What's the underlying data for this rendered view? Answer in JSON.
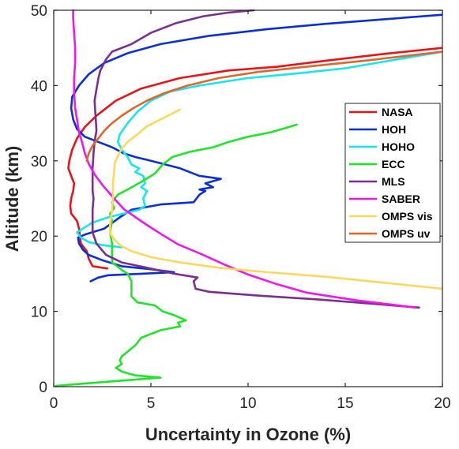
{
  "chart_data": {
    "type": "line",
    "title": "",
    "xlabel": "Uncertainty in Ozone (%)",
    "ylabel": "Altitude (km)",
    "xlim": [
      0,
      20
    ],
    "ylim": [
      0,
      50
    ],
    "xticks": [
      0,
      5,
      10,
      15,
      20
    ],
    "yticks": [
      0,
      10,
      20,
      30,
      40,
      50
    ],
    "grid": false,
    "legend_position": "right",
    "series": [
      {
        "name": "NASA",
        "color": "#e8141a",
        "points": [
          [
            2.75,
            15.7
          ],
          [
            2.0,
            16.0
          ],
          [
            1.8,
            17.0
          ],
          [
            1.7,
            18.0
          ],
          [
            1.4,
            19.0
          ],
          [
            1.35,
            20.0
          ],
          [
            1.3,
            21.0
          ],
          [
            1.2,
            22.0
          ],
          [
            0.9,
            23.0
          ],
          [
            0.85,
            24.0
          ],
          [
            0.9,
            25.0
          ],
          [
            1.0,
            26.0
          ],
          [
            1.05,
            27.0
          ],
          [
            0.9,
            28.0
          ],
          [
            0.75,
            29.0
          ],
          [
            0.8,
            30.0
          ],
          [
            0.95,
            31.5
          ],
          [
            1.2,
            33.0
          ],
          [
            1.6,
            34.5
          ],
          [
            2.2,
            36.0
          ],
          [
            3.2,
            38.0
          ],
          [
            4.5,
            39.6
          ],
          [
            6.5,
            41.0
          ],
          [
            9.0,
            42.0
          ],
          [
            11.5,
            42.5
          ],
          [
            14.0,
            43.3
          ],
          [
            17.0,
            44.2
          ],
          [
            20.0,
            45.0
          ]
        ]
      },
      {
        "name": "HOH",
        "color": "#0a2fd6",
        "points": [
          [
            1.9,
            14.0
          ],
          [
            2.3,
            14.5
          ],
          [
            2.8,
            14.8
          ],
          [
            4.5,
            15.0
          ],
          [
            6.2,
            15.2
          ],
          [
            5.0,
            15.6
          ],
          [
            3.5,
            16.0
          ],
          [
            2.5,
            16.8
          ],
          [
            1.8,
            17.5
          ],
          [
            1.5,
            18.2
          ],
          [
            1.3,
            19.0
          ],
          [
            1.25,
            19.8
          ],
          [
            1.6,
            20.2
          ],
          [
            2.6,
            21.0
          ],
          [
            3.4,
            22.5
          ],
          [
            4.0,
            23.5
          ],
          [
            5.5,
            24.2
          ],
          [
            7.2,
            24.5
          ],
          [
            7.5,
            25.5
          ],
          [
            7.8,
            26.0
          ],
          [
            7.5,
            26.2
          ],
          [
            8.2,
            26.5
          ],
          [
            7.8,
            27.0
          ],
          [
            8.6,
            27.6
          ],
          [
            7.5,
            28.0
          ],
          [
            6.5,
            29.0
          ],
          [
            5.0,
            30.0
          ],
          [
            4.2,
            30.5
          ],
          [
            3.6,
            31.0
          ],
          [
            3.0,
            31.8
          ],
          [
            2.3,
            32.5
          ],
          [
            1.6,
            33.2
          ],
          [
            1.2,
            34.2
          ],
          [
            1.0,
            35.5
          ],
          [
            0.9,
            37.0
          ],
          [
            0.95,
            38.5
          ],
          [
            1.3,
            40.0
          ],
          [
            1.8,
            41.5
          ],
          [
            2.6,
            43.0
          ],
          [
            3.8,
            44.3
          ],
          [
            5.5,
            45.5
          ],
          [
            8.0,
            46.6
          ],
          [
            11.0,
            47.5
          ],
          [
            14.0,
            48.2
          ],
          [
            17.0,
            48.8
          ],
          [
            20.0,
            49.4
          ]
        ]
      },
      {
        "name": "HOHO",
        "color": "#17e5f0",
        "points": [
          [
            3.5,
            18.5
          ],
          [
            2.5,
            18.8
          ],
          [
            1.8,
            19.2
          ],
          [
            1.4,
            19.8
          ],
          [
            1.2,
            20.5
          ],
          [
            1.5,
            21.0
          ],
          [
            2.0,
            21.8
          ],
          [
            2.8,
            22.5
          ],
          [
            3.6,
            23.0
          ],
          [
            4.4,
            23.5
          ],
          [
            4.7,
            24.0
          ],
          [
            4.6,
            25.0
          ],
          [
            4.8,
            26.0
          ],
          [
            4.5,
            26.5
          ],
          [
            4.7,
            27.0
          ],
          [
            4.6,
            28.0
          ],
          [
            4.2,
            28.5
          ],
          [
            4.4,
            29.0
          ],
          [
            4.0,
            29.5
          ],
          [
            3.8,
            30.5
          ],
          [
            3.5,
            31.5
          ],
          [
            3.3,
            32.5
          ],
          [
            3.4,
            33.5
          ],
          [
            3.8,
            35.0
          ],
          [
            4.3,
            36.5
          ],
          [
            5.0,
            38.0
          ],
          [
            6.0,
            39.2
          ],
          [
            7.5,
            40.0
          ],
          [
            10.0,
            41.0
          ],
          [
            12.5,
            41.6
          ],
          [
            15.0,
            42.3
          ],
          [
            20.0,
            44.5
          ]
        ]
      },
      {
        "name": "ECC",
        "color": "#20e52a",
        "points": [
          [
            0.1,
            0.1
          ],
          [
            1.5,
            0.4
          ],
          [
            3.0,
            0.7
          ],
          [
            5.5,
            1.2
          ],
          [
            4.2,
            1.5
          ],
          [
            3.5,
            2.0
          ],
          [
            3.2,
            2.5
          ],
          [
            3.5,
            3.0
          ],
          [
            3.4,
            3.5
          ],
          [
            3.5,
            4.0
          ],
          [
            4.2,
            5.5
          ],
          [
            4.5,
            6.5
          ],
          [
            5.5,
            7.5
          ],
          [
            6.5,
            8.0
          ],
          [
            6.4,
            8.5
          ],
          [
            6.8,
            8.8
          ],
          [
            6.2,
            9.5
          ],
          [
            5.6,
            10.0
          ],
          [
            5.2,
            10.8
          ],
          [
            4.3,
            11.2
          ],
          [
            4.0,
            12.0
          ],
          [
            4.0,
            13.0
          ],
          [
            4.0,
            14.0
          ],
          [
            3.8,
            15.0
          ],
          [
            3.5,
            15.5
          ],
          [
            3.0,
            16.5
          ],
          [
            3.0,
            17.5
          ],
          [
            3.0,
            19.0
          ],
          [
            2.9,
            20.5
          ],
          [
            3.0,
            22.0
          ],
          [
            2.9,
            23.0
          ],
          [
            3.1,
            23.7
          ],
          [
            3.0,
            24.5
          ],
          [
            3.3,
            25.5
          ],
          [
            3.8,
            26.2
          ],
          [
            4.5,
            27.2
          ],
          [
            5.2,
            28.3
          ],
          [
            5.6,
            29.5
          ],
          [
            6.1,
            30.5
          ],
          [
            7.0,
            31.2
          ],
          [
            8.2,
            31.8
          ],
          [
            9.0,
            32.5
          ],
          [
            10.0,
            33.2
          ],
          [
            11.2,
            33.8
          ],
          [
            12.5,
            34.8
          ]
        ]
      },
      {
        "name": "MLS",
        "color": "#7a2f90",
        "points": [
          [
            18.8,
            10.5
          ],
          [
            16.5,
            11.0
          ],
          [
            13.5,
            11.6
          ],
          [
            10.5,
            12.1
          ],
          [
            8.0,
            12.6
          ],
          [
            7.3,
            13.0
          ],
          [
            7.2,
            14.0
          ],
          [
            7.4,
            14.5
          ],
          [
            6.2,
            15.0
          ],
          [
            4.8,
            15.8
          ],
          [
            3.5,
            16.5
          ],
          [
            2.7,
            17.5
          ],
          [
            2.2,
            19.0
          ],
          [
            2.0,
            20.5
          ],
          [
            2.0,
            22.0
          ],
          [
            2.0,
            23.5
          ],
          [
            2.05,
            25.0
          ],
          [
            2.0,
            26.0
          ],
          [
            2.0,
            27.5
          ],
          [
            2.0,
            29.0
          ],
          [
            2.05,
            31.0
          ],
          [
            2.1,
            32.5
          ],
          [
            2.2,
            34.0
          ],
          [
            2.15,
            36.0
          ],
          [
            2.1,
            38.0
          ],
          [
            2.2,
            39.5
          ],
          [
            2.3,
            41.0
          ],
          [
            2.4,
            42.0
          ],
          [
            2.7,
            43.5
          ],
          [
            3.0,
            44.5
          ],
          [
            4.0,
            45.5
          ],
          [
            5.0,
            47.0
          ],
          [
            6.3,
            48.3
          ],
          [
            7.7,
            49.2
          ],
          [
            9.0,
            49.7
          ],
          [
            10.3,
            50.0
          ]
        ]
      },
      {
        "name": "SABER",
        "color": "#ef17e9",
        "points": [
          [
            18.6,
            10.5
          ],
          [
            15.5,
            11.5
          ],
          [
            13.0,
            12.5
          ],
          [
            11.5,
            13.6
          ],
          [
            10.0,
            14.9
          ],
          [
            8.8,
            16.2
          ],
          [
            7.6,
            17.6
          ],
          [
            6.4,
            18.9
          ],
          [
            5.5,
            20.3
          ],
          [
            4.6,
            21.8
          ],
          [
            3.6,
            23.6
          ],
          [
            3.0,
            25.3
          ],
          [
            2.5,
            26.8
          ],
          [
            2.1,
            28.2
          ],
          [
            1.8,
            29.6
          ],
          [
            1.6,
            31.0
          ],
          [
            1.45,
            32.5
          ],
          [
            1.3,
            33.8
          ],
          [
            1.2,
            35.5
          ],
          [
            1.1,
            37.0
          ],
          [
            1.05,
            39.0
          ],
          [
            1.05,
            41.0
          ],
          [
            1.1,
            43.0
          ],
          [
            1.1,
            45.0
          ],
          [
            1.05,
            47.0
          ],
          [
            1.0,
            49.0
          ],
          [
            1.0,
            50.0
          ]
        ]
      },
      {
        "name": "OMPS vis",
        "color": "#ffd75e",
        "points": [
          [
            20.0,
            13.0
          ],
          [
            17.0,
            13.8
          ],
          [
            14.0,
            14.6
          ],
          [
            11.0,
            15.2
          ],
          [
            8.5,
            15.8
          ],
          [
            6.5,
            16.5
          ],
          [
            5.0,
            17.2
          ],
          [
            4.0,
            18.0
          ],
          [
            3.4,
            18.8
          ],
          [
            3.1,
            19.6
          ],
          [
            2.9,
            20.4
          ],
          [
            2.9,
            21.5
          ],
          [
            2.95,
            22.5
          ],
          [
            3.0,
            23.5
          ],
          [
            3.05,
            25.0
          ],
          [
            3.05,
            27.0
          ],
          [
            3.1,
            28.5
          ],
          [
            3.15,
            29.8
          ],
          [
            3.3,
            30.6
          ],
          [
            3.5,
            31.6
          ],
          [
            3.8,
            32.5
          ],
          [
            4.3,
            33.5
          ],
          [
            4.8,
            34.6
          ],
          [
            5.5,
            35.5
          ],
          [
            6.5,
            36.8
          ]
        ]
      },
      {
        "name": "OMPS uv",
        "color": "#e0672a",
        "points": [
          [
            1.7,
            30.0
          ],
          [
            1.8,
            31.0
          ],
          [
            2.0,
            32.0
          ],
          [
            2.3,
            33.0
          ],
          [
            2.6,
            34.0
          ],
          [
            3.0,
            35.0
          ],
          [
            3.5,
            36.0
          ],
          [
            4.1,
            37.0
          ],
          [
            4.8,
            38.0
          ],
          [
            5.7,
            39.0
          ],
          [
            6.9,
            40.0
          ],
          [
            8.5,
            41.0
          ],
          [
            10.5,
            41.8
          ],
          [
            13.0,
            42.5
          ],
          [
            16.0,
            43.3
          ],
          [
            20.0,
            44.5
          ]
        ]
      }
    ]
  }
}
